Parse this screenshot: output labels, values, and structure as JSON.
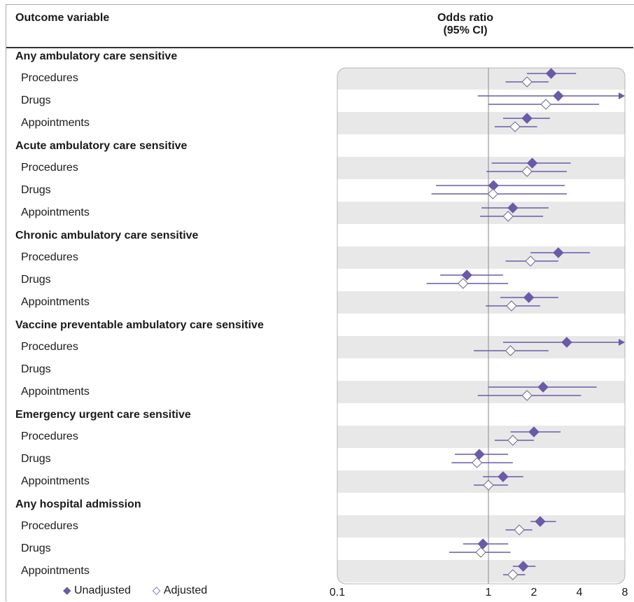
{
  "header": {
    "outcome_label": "Outcome variable",
    "or_label_line1": "Odds ratio",
    "or_label_line2": "(95% CI)"
  },
  "legend": {
    "unadjusted": "Unadjusted",
    "adjusted": "Adjusted"
  },
  "colors": {
    "series": "#6b5aa8",
    "band": "#e8e8e8",
    "refline": "#999999"
  },
  "chart_data": {
    "type": "forest",
    "x_scale": "log",
    "xlim": [
      0.1,
      8
    ],
    "xticks": [
      0.1,
      1,
      2,
      4,
      8
    ],
    "xtick_labels": [
      "0.1",
      "1",
      "2",
      "4",
      "8"
    ],
    "reference_line": 1,
    "series": [
      {
        "name": "Unadjusted",
        "marker": "filled-diamond"
      },
      {
        "name": "Adjusted",
        "marker": "open-diamond"
      }
    ],
    "groups": [
      {
        "name": "Any ambulatory care sensitive",
        "rows": [
          {
            "label": "Procedures",
            "unadjusted": {
              "or": 2.6,
              "lo": 1.8,
              "hi": 3.8
            },
            "adjusted": {
              "or": 1.8,
              "lo": 1.3,
              "hi": 2.5
            }
          },
          {
            "label": "Drugs",
            "unadjusted": {
              "or": 2.9,
              "lo": 0.85,
              "hi": 8
            },
            "adjusted": {
              "or": 2.4,
              "lo": 1.0,
              "hi": 5.4
            }
          },
          {
            "label": "Appointments",
            "unadjusted": {
              "or": 1.8,
              "lo": 1.25,
              "hi": 2.55
            },
            "adjusted": {
              "or": 1.5,
              "lo": 1.1,
              "hi": 2.1
            }
          }
        ]
      },
      {
        "name": "Acute ambulatory care sensitive",
        "rows": [
          {
            "label": "Procedures",
            "unadjusted": {
              "or": 1.95,
              "lo": 1.05,
              "hi": 3.5
            },
            "adjusted": {
              "or": 1.8,
              "lo": 0.97,
              "hi": 3.3
            }
          },
          {
            "label": "Drugs",
            "unadjusted": {
              "or": 1.08,
              "lo": 0.45,
              "hi": 3.2
            },
            "adjusted": {
              "or": 1.07,
              "lo": 0.42,
              "hi": 3.3
            }
          },
          {
            "label": "Appointments",
            "unadjusted": {
              "or": 1.45,
              "lo": 0.9,
              "hi": 2.5
            },
            "adjusted": {
              "or": 1.35,
              "lo": 0.88,
              "hi": 2.3
            }
          }
        ]
      },
      {
        "name": "Chronic ambulatory care sensitive",
        "rows": [
          {
            "label": "Procedures",
            "unadjusted": {
              "or": 2.9,
              "lo": 1.9,
              "hi": 4.7
            },
            "adjusted": {
              "or": 1.9,
              "lo": 1.3,
              "hi": 2.9
            }
          },
          {
            "label": "Drugs",
            "unadjusted": {
              "or": 0.72,
              "lo": 0.48,
              "hi": 1.25
            },
            "adjusted": {
              "or": 0.68,
              "lo": 0.39,
              "hi": 1.35
            }
          },
          {
            "label": "Appointments",
            "unadjusted": {
              "or": 1.85,
              "lo": 1.2,
              "hi": 2.9
            },
            "adjusted": {
              "or": 1.42,
              "lo": 0.96,
              "hi": 2.2
            }
          }
        ]
      },
      {
        "name": "Vaccine preventable ambulatory care sensitive",
        "rows": [
          {
            "label": "Procedures",
            "unadjusted": {
              "or": 3.3,
              "lo": 1.25,
              "hi": 8
            },
            "adjusted": {
              "or": 1.4,
              "lo": 0.8,
              "hi": 2.5
            }
          },
          {
            "label": "Drugs"
          },
          {
            "label": "Appointments",
            "unadjusted": {
              "or": 2.3,
              "lo": 1.0,
              "hi": 5.2
            },
            "adjusted": {
              "or": 1.8,
              "lo": 0.85,
              "hi": 4.1
            }
          }
        ]
      },
      {
        "name": "Emergency urgent care sensitive",
        "rows": [
          {
            "label": "Procedures",
            "unadjusted": {
              "or": 2.0,
              "lo": 1.4,
              "hi": 3.0
            },
            "adjusted": {
              "or": 1.45,
              "lo": 1.1,
              "hi": 2.0
            }
          },
          {
            "label": "Drugs",
            "unadjusted": {
              "or": 0.87,
              "lo": 0.6,
              "hi": 1.35
            },
            "adjusted": {
              "or": 0.84,
              "lo": 0.57,
              "hi": 1.45
            }
          },
          {
            "label": "Appointments",
            "unadjusted": {
              "or": 1.25,
              "lo": 0.92,
              "hi": 1.7
            },
            "adjusted": {
              "or": 1.0,
              "lo": 0.8,
              "hi": 1.35
            }
          }
        ]
      },
      {
        "name": "Any hospital admission",
        "rows": [
          {
            "label": "Procedures",
            "unadjusted": {
              "or": 2.2,
              "lo": 1.9,
              "hi": 2.8
            },
            "adjusted": {
              "or": 1.6,
              "lo": 1.3,
              "hi": 1.95
            }
          },
          {
            "label": "Drugs",
            "unadjusted": {
              "or": 0.92,
              "lo": 0.68,
              "hi": 1.35
            },
            "adjusted": {
              "or": 0.89,
              "lo": 0.55,
              "hi": 1.4
            }
          },
          {
            "label": "Appointments",
            "unadjusted": {
              "or": 1.7,
              "lo": 1.45,
              "hi": 2.05
            },
            "adjusted": {
              "or": 1.45,
              "lo": 1.25,
              "hi": 1.75
            }
          }
        ]
      }
    ]
  }
}
